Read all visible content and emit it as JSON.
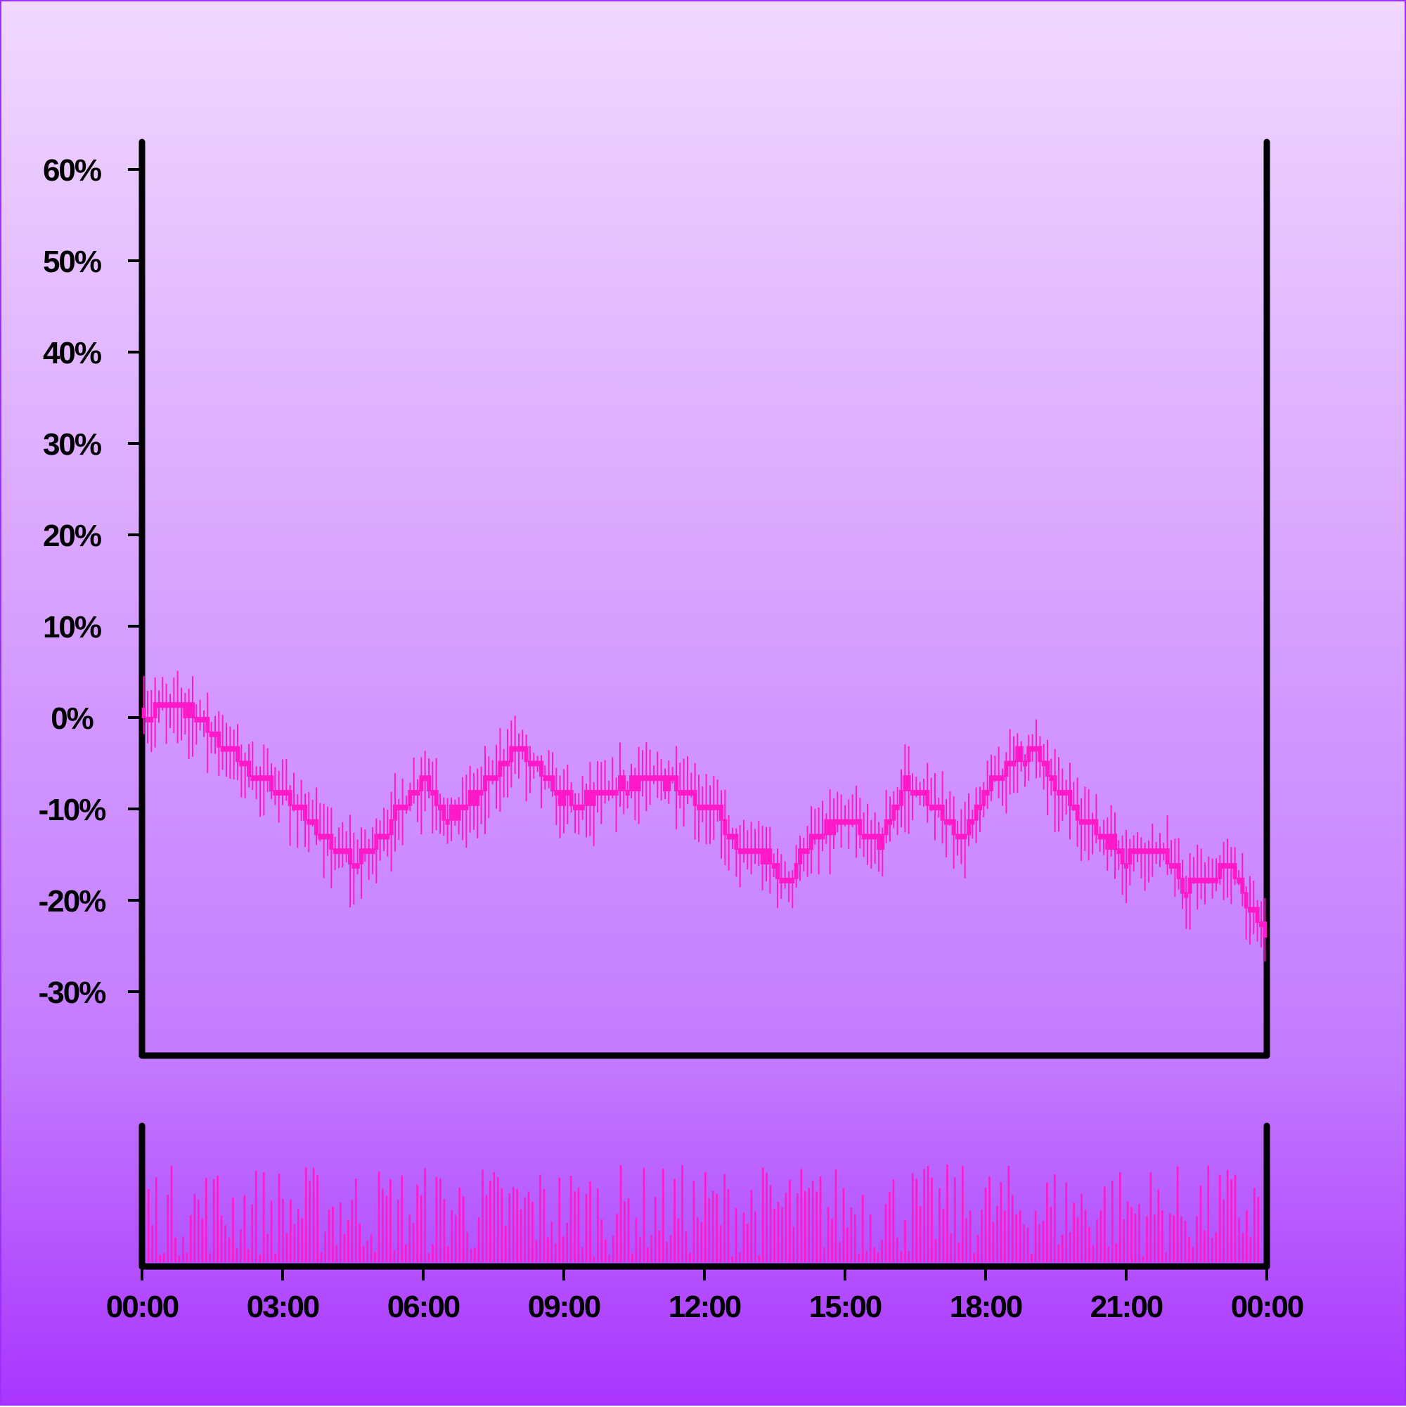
{
  "chart_data": [
    {
      "type": "candlestick",
      "y_unit": "%",
      "ylim": [
        -37,
        63
      ],
      "yticks": [
        "60%",
        "50%",
        "40%",
        "30%",
        "20%",
        "10%",
        "0%",
        "-10%",
        "-20%",
        "-30%"
      ],
      "ytick_values": [
        60,
        50,
        40,
        30,
        20,
        10,
        0,
        -10,
        -20,
        -30
      ],
      "x_range": [
        "00:00",
        "24:00"
      ],
      "grid": false,
      "legend": "none",
      "colors": {
        "series": "#ff19c8",
        "axes": "#000000"
      },
      "series": [
        {
          "x": [
            "00:15",
            "01:00",
            "02:00",
            "03:00",
            "03:45",
            "04:30",
            "05:15",
            "06:00",
            "06:30",
            "07:15",
            "08:00",
            "08:30",
            "09:00",
            "09:30",
            "10:00",
            "10:30",
            "11:15",
            "12:00",
            "12:45",
            "13:15",
            "13:45",
            "14:15",
            "15:00",
            "15:45",
            "16:15",
            "16:45",
            "17:30",
            "18:15",
            "19:00",
            "19:30",
            "20:15",
            "21:00",
            "21:45",
            "22:15",
            "22:45",
            "23:15",
            "23:45",
            "24:00"
          ],
          "values": [
            1,
            1,
            -4,
            -8,
            -12,
            -16,
            -12,
            -6,
            -11,
            -8,
            -3,
            -6,
            -9,
            -9,
            -8,
            -7,
            -7,
            -9,
            -14,
            -15,
            -18,
            -13,
            -11,
            -14,
            -7,
            -9,
            -13,
            -6,
            -3,
            -8,
            -12,
            -15,
            -14,
            -19,
            -17,
            -16,
            -22,
            -24
          ]
        }
      ]
    },
    {
      "type": "bar",
      "title": "",
      "x_range": [
        "00:00",
        "24:00"
      ],
      "xticks": [
        "00:00",
        "03:00",
        "06:00",
        "09:00",
        "12:00",
        "15:00",
        "18:00",
        "21:00",
        "00:00"
      ],
      "bar_count": 290,
      "colors": {
        "bars": "#ff19c8",
        "axes": "#000000"
      }
    }
  ]
}
